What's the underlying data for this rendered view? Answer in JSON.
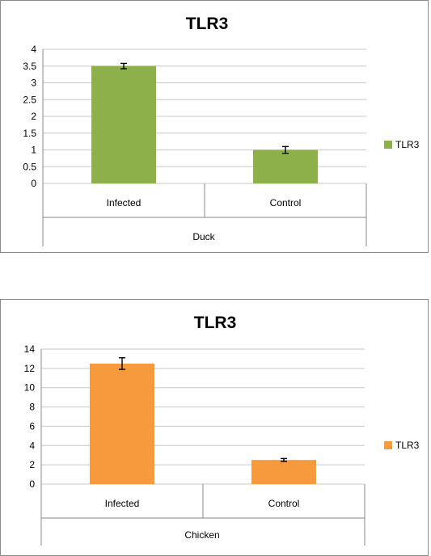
{
  "chart_data": [
    {
      "type": "bar",
      "title": "TLR3",
      "group": "Duck",
      "categories": [
        "Infected",
        "Control"
      ],
      "series": [
        {
          "name": "TLR3",
          "values": [
            3.5,
            1.0
          ],
          "errors": [
            0.08,
            0.1
          ],
          "color": "#8DB04B"
        }
      ],
      "ylim": [
        0,
        4
      ],
      "yticks": [
        "0",
        "0.5",
        "1",
        "1.5",
        "2",
        "2.5",
        "3",
        "3.5",
        "4"
      ],
      "grid": true,
      "legend": "right"
    },
    {
      "type": "bar",
      "title": "TLR3",
      "group": "Chicken",
      "categories": [
        "Infected",
        "Control"
      ],
      "series": [
        {
          "name": "TLR3",
          "values": [
            12.5,
            2.5
          ],
          "errors": [
            0.6,
            0.15
          ],
          "color": "#F79A3E"
        }
      ],
      "ylim": [
        0,
        14
      ],
      "yticks": [
        "0",
        "2",
        "4",
        "6",
        "8",
        "10",
        "12",
        "14"
      ],
      "grid": true,
      "legend": "right"
    }
  ]
}
